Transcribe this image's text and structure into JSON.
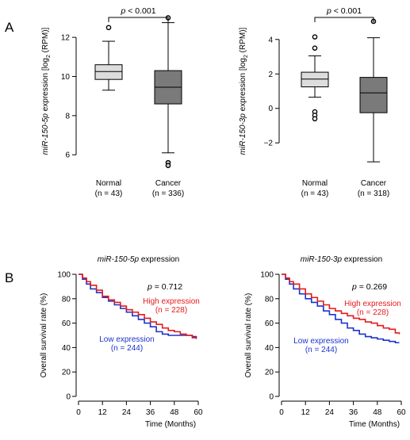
{
  "panel_labels": [
    "A",
    "B"
  ],
  "colors": {
    "high": "#e41a1c",
    "low": "#1c33cc",
    "normal_box": "#dddddd",
    "cancer_box": "#7a7a7a"
  },
  "chart_data": [
    {
      "type": "box",
      "p_text": "p < 0.001",
      "ylabel": {
        "mir": "miR-150-5p",
        "rest": " expression [log",
        "sub": "2",
        "tail": " (RPM)]"
      },
      "yticks": [
        6,
        8,
        10,
        12
      ],
      "ylim": [
        5.2,
        13.3
      ],
      "groups": [
        {
          "name": "Normal",
          "n": "(n = 43)",
          "whisker_low": 9.3,
          "q1": 9.85,
          "median": 10.25,
          "q3": 10.6,
          "whisker_high": 11.8,
          "outliers": [
            12.5
          ]
        },
        {
          "name": "Cancer",
          "n": "(n = 336)",
          "whisker_low": 6.1,
          "q1": 8.6,
          "median": 9.45,
          "q3": 10.3,
          "whisker_high": 12.75,
          "outliers": [
            5.6,
            5.45,
            13.0
          ]
        }
      ]
    },
    {
      "type": "box",
      "p_text": "p < 0.001",
      "ylabel": {
        "mir": "miR-150-3p",
        "rest": " expression [log",
        "sub": "2",
        "tail": " (RPM)]"
      },
      "yticks": [
        -2,
        0,
        2,
        4
      ],
      "ylim": [
        -3.6,
        5.6
      ],
      "groups": [
        {
          "name": "Normal",
          "n": "(n = 43)",
          "whisker_low": 0.65,
          "q1": 1.25,
          "median": 1.7,
          "q3": 2.1,
          "whisker_high": 3.05,
          "outliers": [
            -0.2,
            -0.4,
            -0.6,
            3.5,
            4.15
          ]
        },
        {
          "name": "Cancer",
          "n": "(n = 318)",
          "whisker_low": -3.1,
          "q1": -0.25,
          "median": 0.9,
          "q3": 1.8,
          "whisker_high": 4.1,
          "outliers": [
            5.05
          ]
        }
      ]
    },
    {
      "type": "line",
      "title": {
        "mir": "miR-150-5p",
        "rest": " expression"
      },
      "p_text": "p = 0.712",
      "xlabel": "Time (Months)",
      "ylabel": "Overall survival rate (%)",
      "xticks": [
        0,
        12,
        24,
        36,
        48,
        60
      ],
      "yticks": [
        0,
        20,
        40,
        60,
        80,
        100
      ],
      "xlim": [
        0,
        60
      ],
      "ylim": [
        0,
        100
      ],
      "series": [
        {
          "name": "High expression",
          "n": "(n = 228)",
          "x": [
            0,
            2,
            4,
            6,
            9,
            12,
            15,
            18,
            21,
            24,
            27,
            30,
            33,
            36,
            39,
            42,
            45,
            48,
            51,
            54,
            57,
            59
          ],
          "y": [
            100,
            97,
            94,
            91,
            87,
            82,
            79,
            77,
            74,
            71,
            69,
            67,
            64,
            61,
            59,
            56,
            54,
            53,
            51,
            50,
            48,
            47
          ]
        },
        {
          "name": "Low expression",
          "n": "(n = 244)",
          "x": [
            0,
            2,
            4,
            6,
            9,
            12,
            15,
            18,
            21,
            24,
            27,
            30,
            33,
            36,
            39,
            42,
            45,
            48,
            51,
            54,
            57,
            59
          ],
          "y": [
            100,
            96,
            92,
            88,
            85,
            81,
            78,
            75,
            72,
            69,
            66,
            63,
            60,
            57,
            53,
            51,
            50,
            50,
            50,
            50,
            49,
            48
          ]
        }
      ]
    },
    {
      "type": "line",
      "title": {
        "mir": "miR-150-3p",
        "rest": " expression"
      },
      "p_text": "p = 0.269",
      "xlabel": "Time (Months)",
      "ylabel": "Overall survival rate (%)",
      "xticks": [
        0,
        12,
        24,
        36,
        48,
        60
      ],
      "yticks": [
        0,
        20,
        40,
        60,
        80,
        100
      ],
      "xlim": [
        0,
        60
      ],
      "ylim": [
        0,
        100
      ],
      "series": [
        {
          "name": "High expression",
          "n": "(n = 228)",
          "x": [
            0,
            2,
            4,
            6,
            9,
            12,
            15,
            18,
            21,
            24,
            27,
            30,
            33,
            36,
            39,
            42,
            45,
            48,
            51,
            54,
            57,
            59
          ],
          "y": [
            100,
            97,
            94,
            92,
            88,
            84,
            81,
            78,
            75,
            72,
            70,
            68,
            66,
            64,
            63,
            61,
            60,
            58,
            56,
            55,
            52,
            51
          ]
        },
        {
          "name": "Low expression",
          "n": "(n = 244)",
          "x": [
            0,
            2,
            4,
            6,
            9,
            12,
            15,
            18,
            21,
            24,
            27,
            30,
            33,
            36,
            39,
            42,
            45,
            48,
            51,
            54,
            57,
            59
          ],
          "y": [
            100,
            96,
            92,
            88,
            84,
            80,
            77,
            74,
            70,
            67,
            63,
            60,
            56,
            54,
            51,
            49,
            48,
            47,
            46,
            45,
            44,
            44
          ]
        }
      ]
    }
  ]
}
